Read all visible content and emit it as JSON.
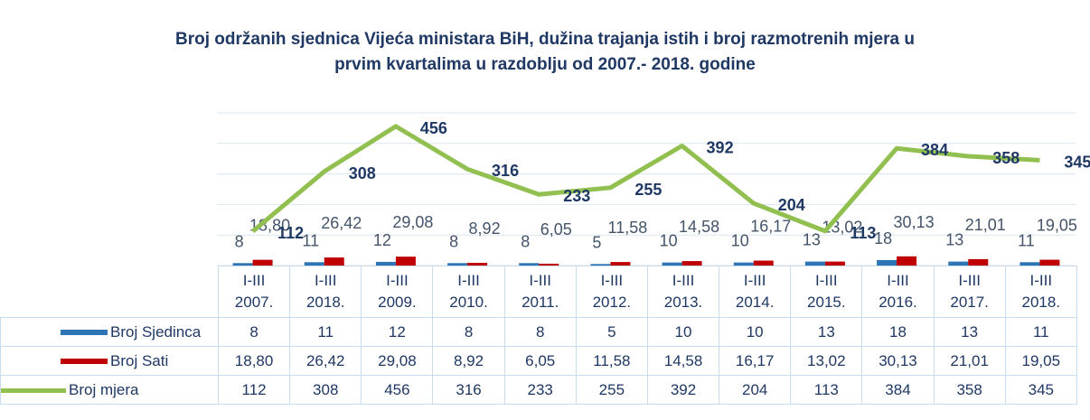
{
  "chart_data": {
    "type": "bar-line",
    "title": "Broj održanih sjednica Vijeća ministara BiH, dužina trajanja istih i broj razmotrenih mjera u\nprvim kvartalima u razdoblju od 2007.- 2018. godine",
    "categories": [
      "I-III\n2007.",
      "I-III\n2018.",
      "I-III\n2009.",
      "I-III\n2010.",
      "I-III\n2011.",
      "I-III\n2012.",
      "I-III\n2013.",
      "I-III\n2014.",
      "I-III\n2015.",
      "I-III\n2016.",
      "I-III\n2017.",
      "I-III\n2018."
    ],
    "series": [
      {
        "name": "Broj Sjedinca",
        "color": "#2e75b6",
        "kind": "bar",
        "values": [
          8,
          11,
          12,
          8,
          8,
          5,
          10,
          10,
          13,
          18,
          13,
          11
        ]
      },
      {
        "name": "Broj Sati",
        "color": "#c00000",
        "kind": "bar",
        "values": [
          18.8,
          26.42,
          29.08,
          8.92,
          6.05,
          11.58,
          14.58,
          16.17,
          13.02,
          30.13,
          21.01,
          19.05
        ],
        "value_labels": [
          "18,80",
          "26,42",
          "29,08",
          "8,92",
          "6,05",
          "11,58",
          "14,58",
          "16,17",
          "13,02",
          "30,13",
          "21,01",
          "19,05"
        ]
      },
      {
        "name": "Broj mjera",
        "color": "#92c050",
        "kind": "line",
        "values": [
          112,
          308,
          456,
          316,
          233,
          255,
          392,
          204,
          113,
          384,
          358,
          345
        ]
      }
    ],
    "ylim": [
      0,
      500
    ],
    "yticks": [
      0,
      100,
      200,
      300,
      400,
      500
    ],
    "grid": true
  }
}
